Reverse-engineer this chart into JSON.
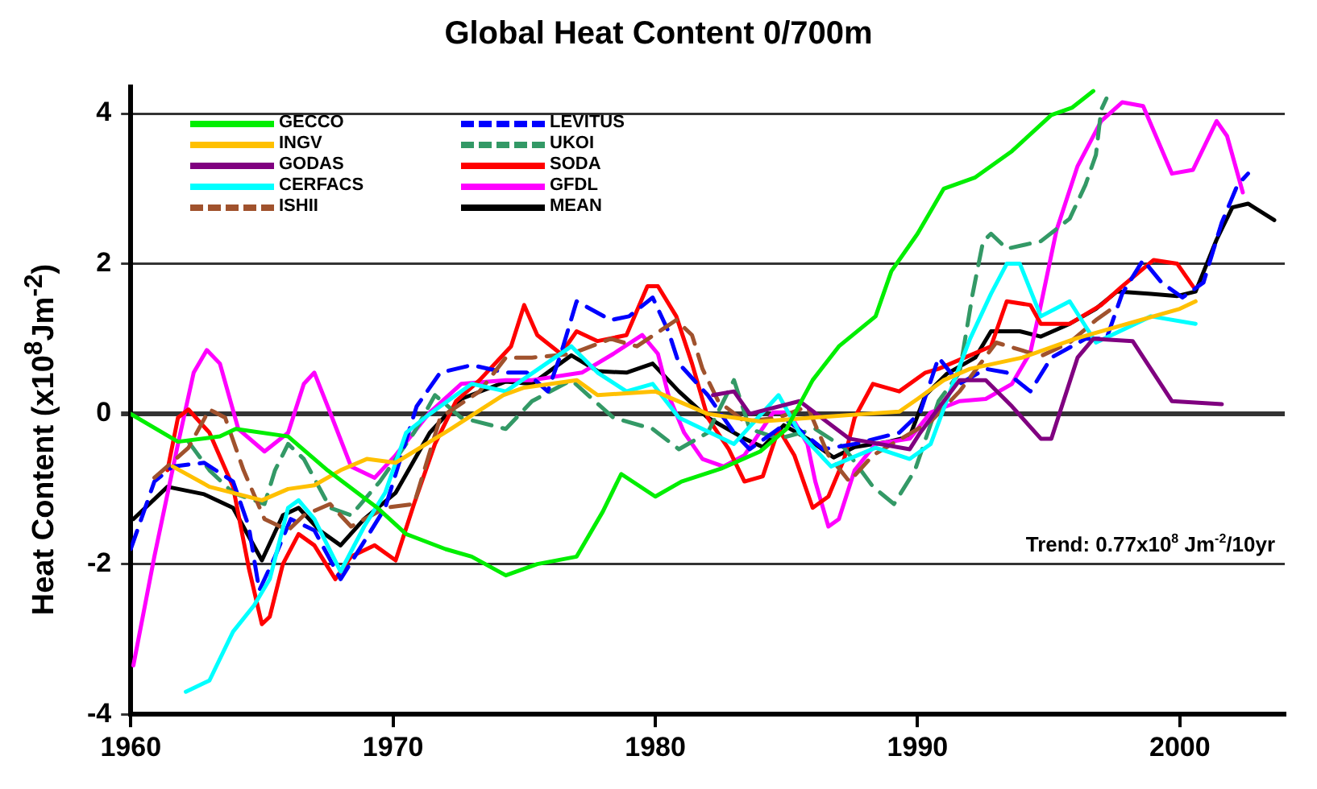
{
  "chart_data": {
    "type": "line",
    "title": "Global Heat Content 0/700m",
    "ylabel": "Heat Content  (x10$^{8}$Jm$^{-2}$)",
    "xlim": [
      1960,
      2004
    ],
    "xticks": [
      1960,
      1970,
      1980,
      1990,
      2000
    ],
    "ylim": [
      -4,
      4.35
    ],
    "yticks": [
      -4,
      -2,
      0,
      2,
      4
    ],
    "grid": "y",
    "legend": "top left",
    "marker": "none",
    "annotations": [
      "Trend: 0.77x10$^{8}$ Jm$^{-2}$/10yr"
    ],
    "series": [
      {
        "name": "GECCO",
        "color": "#00ee00",
        "x": [
          1960,
          1961.8,
          1963.4,
          1964,
          1966,
          1967.5,
          1969.4,
          1970.5,
          1972,
          1973,
          1974.3,
          1975.5,
          1977,
          1978,
          1978.7,
          1980,
          1981,
          1982.5,
          1984,
          1985,
          1986,
          1987,
          1988.4,
          1989,
          1990,
          1991,
          1992.2,
          1993.6,
          1995.1,
          1995.9,
          1996.7
        ],
        "values": [
          0,
          -0.37,
          -0.3,
          -0.2,
          -0.3,
          -0.75,
          -1.25,
          -1.6,
          -1.8,
          -1.9,
          -2.15,
          -2.0,
          -1.9,
          -1.3,
          -0.8,
          -1.1,
          -0.9,
          -0.73,
          -0.5,
          -0.2,
          0.45,
          0.9,
          1.3,
          1.9,
          2.4,
          3.0,
          3.15,
          3.5,
          3.98,
          4.08,
          4.3
        ]
      },
      {
        "name": "INGV",
        "color": "#ffc000",
        "x": [
          1961.6,
          1963,
          1965,
          1966,
          1967,
          1968,
          1969,
          1970.1,
          1972.2,
          1974.2,
          1975,
          1977,
          1977.8,
          1980,
          1981,
          1982,
          1984,
          1986,
          1988,
          1989.3,
          1990,
          1991,
          1992,
          1994,
          1996,
          1998,
          2000,
          2000.6
        ],
        "values": [
          -0.7,
          -0.97,
          -1.15,
          -1.0,
          -0.95,
          -0.75,
          -0.6,
          -0.65,
          -0.2,
          0.25,
          0.35,
          0.45,
          0.25,
          0.3,
          0.15,
          0.0,
          -0.1,
          -0.05,
          0.0,
          0.03,
          0.2,
          0.45,
          0.6,
          0.75,
          1.0,
          1.2,
          1.4,
          1.5
        ]
      },
      {
        "name": "GODAS",
        "color": "#800080",
        "x": [
          1982.2,
          1983,
          1983.6,
          1985.5,
          1987.4,
          1989.7,
          1990.1,
          1991.6,
          1992.6,
          1993.6,
          1994.7,
          1995.1,
          1996.1,
          1996.7,
          1998.2,
          1999.7,
          2001.6
        ],
        "values": [
          0.25,
          0.3,
          0.0,
          0.17,
          -0.33,
          -0.47,
          -0.25,
          0.45,
          0.45,
          0.1,
          -0.33,
          -0.33,
          0.75,
          1.0,
          0.97,
          0.17,
          0.13
        ]
      },
      {
        "name": "CERFACS",
        "color": "#00ffff",
        "x": [
          1962.1,
          1963,
          1963.9,
          1964.7,
          1965.3,
          1966,
          1966.4,
          1967,
          1968,
          1968.9,
          1969.7,
          1970.5,
          1971.4,
          1973,
          1974.3,
          1976.8,
          1977.8,
          1978.9,
          1979.9,
          1980.9,
          1983,
          1984.7,
          1985.5,
          1986.7,
          1988.4,
          1989.7,
          1990.5,
          1991.4,
          1992,
          1992.8,
          1993.4,
          1993.9,
          1994.7,
          1995.8,
          1996.8,
          1998.9,
          2000.6
        ],
        "values": [
          -3.7,
          -3.55,
          -2.9,
          -2.55,
          -2.2,
          -1.25,
          -1.15,
          -1.4,
          -2.1,
          -1.5,
          -1.05,
          -0.25,
          0.0,
          0.4,
          0.3,
          0.9,
          0.55,
          0.3,
          0.4,
          -0.05,
          -0.4,
          0.25,
          -0.25,
          -0.7,
          -0.45,
          -0.6,
          -0.4,
          0.45,
          1.0,
          1.6,
          2.0,
          2.0,
          1.3,
          1.5,
          0.95,
          1.3,
          1.2
        ]
      },
      {
        "name": "ISHII",
        "color": "#a0522d",
        "line_style": "dashed",
        "x": [
          1960.9,
          1962.2,
          1963,
          1963.6,
          1964.3,
          1965.1,
          1966,
          1966.6,
          1967.6,
          1968.4,
          1969.7,
          1970.8,
          1971.8,
          1973.3,
          1974.3,
          1975.3,
          1976.8,
          1978.3,
          1979.3,
          1980.8,
          1981.4,
          1981.8,
          1982.4,
          1983.4,
          1984.7,
          1985.8,
          1986.6,
          1987.4,
          1988.3,
          1990.5,
          1991.6,
          1993,
          1994.7,
          1995.8,
          1996.8,
          1997.6
        ],
        "values": [
          -0.85,
          -0.45,
          0.06,
          -0.05,
          -0.75,
          -1.4,
          -1.55,
          -1.35,
          -1.2,
          -1.5,
          -1.25,
          -1.2,
          -0.05,
          0.3,
          0.75,
          0.75,
          0.8,
          1.0,
          0.9,
          1.25,
          1.05,
          0.6,
          0.17,
          -0.1,
          -0.05,
          0.1,
          -0.55,
          -0.9,
          -0.55,
          -0.1,
          0.3,
          0.95,
          0.77,
          0.95,
          1.25,
          1.45
        ]
      },
      {
        "name": "LEVITUS",
        "color": "#0000ff",
        "line_style": "dashed",
        "x": [
          1960,
          1960.9,
          1961.6,
          1962.8,
          1963.9,
          1964.5,
          1964.9,
          1965.5,
          1966.1,
          1967,
          1968,
          1968.9,
          1969.7,
          1970.9,
          1971.8,
          1973,
          1974.3,
          1975.1,
          1975.9,
          1976.4,
          1977,
          1978.3,
          1979,
          1979.9,
          1980.5,
          1980.9,
          1982,
          1983,
          1983.6,
          1985.1,
          1986.4,
          1987.6,
          1989.3,
          1990.1,
          1990.8,
          1991.6,
          1992.6,
          1993.4,
          1994.3,
          1995.1,
          1996.4,
          1997.2,
          1997.8,
          1998.6,
          1999.3,
          2000.1,
          2000.9,
          2001.6,
          2002.2,
          2002.6
        ],
        "values": [
          -1.8,
          -0.9,
          -0.7,
          -0.65,
          -0.9,
          -1.5,
          -2.35,
          -1.9,
          -1.4,
          -1.55,
          -2.2,
          -1.7,
          -1.25,
          0.1,
          0.55,
          0.65,
          0.55,
          0.55,
          0.3,
          0.8,
          1.5,
          1.25,
          1.3,
          1.55,
          1.1,
          0.67,
          0.25,
          -0.25,
          -0.47,
          -0.1,
          -0.47,
          -0.4,
          -0.25,
          0.02,
          0.75,
          0.4,
          0.6,
          0.55,
          0.3,
          0.75,
          1.0,
          1.0,
          1.6,
          2.05,
          1.75,
          1.55,
          1.75,
          2.55,
          3.05,
          3.2
        ]
      },
      {
        "name": "UKOI",
        "color": "#339966",
        "line_style": "dashed",
        "x": [
          1962.2,
          1963,
          1963.9,
          1965.1,
          1965.5,
          1966,
          1966.6,
          1967.6,
          1968.4,
          1969.5,
          1970.8,
          1971.6,
          1972.6,
          1974.3,
          1975.3,
          1976.8,
          1978.4,
          1979.9,
          1980.9,
          1982,
          1983,
          1983.6,
          1984.7,
          1986.1,
          1987.2,
          1988.3,
          1989.1,
          1989.9,
          1990.8,
          1991.6,
          1992.1,
          1992.5,
          1992.8,
          1993.4,
          1994.7,
          1995.8,
          1996.4,
          1996.8,
          1997,
          1997.2
        ],
        "values": [
          -0.37,
          -0.75,
          -1.05,
          -1.2,
          -0.75,
          -0.4,
          -0.6,
          -1.25,
          -1.35,
          -0.9,
          -0.25,
          0.25,
          -0.05,
          -0.2,
          0.17,
          0.45,
          -0.05,
          -0.2,
          -0.47,
          -0.25,
          0.45,
          -0.2,
          -0.33,
          -0.2,
          -0.45,
          -0.97,
          -1.2,
          -0.75,
          0.17,
          0.55,
          1.6,
          2.3,
          2.4,
          2.2,
          2.3,
          2.6,
          3.05,
          3.45,
          4.05,
          4.2
        ]
      },
      {
        "name": "SODA",
        "color": "#ff0000",
        "x": [
          1961.4,
          1961.8,
          1962.2,
          1963,
          1963.9,
          1964.5,
          1965,
          1965.3,
          1965.8,
          1966.4,
          1967,
          1967.8,
          1968.4,
          1969.3,
          1970.1,
          1970.8,
          1971.6,
          1972.4,
          1973.3,
          1974.5,
          1975,
          1975.5,
          1976.4,
          1977,
          1977.8,
          1978.9,
          1979.7,
          1980.1,
          1980.8,
          1981.4,
          1982,
          1982.8,
          1983.4,
          1984.1,
          1984.7,
          1985.3,
          1986,
          1986.6,
          1987.2,
          1987.6,
          1988.3,
          1989.3,
          1990.3,
          1990.8,
          1991.8,
          1992.8,
          1993.4,
          1994.3,
          1994.7,
          1995.8,
          1997,
          1997.8,
          1999,
          1999.9,
          2000.5
        ],
        "values": [
          -0.75,
          -0.05,
          0.06,
          -0.25,
          -0.97,
          -2.05,
          -2.8,
          -2.7,
          -2.0,
          -1.6,
          -1.75,
          -2.2,
          -1.9,
          -1.75,
          -1.95,
          -1.2,
          -0.4,
          0.17,
          0.45,
          0.9,
          1.45,
          1.05,
          0.8,
          1.1,
          0.97,
          1.05,
          1.7,
          1.7,
          1.3,
          0.67,
          -0.05,
          -0.47,
          -0.9,
          -0.83,
          -0.2,
          -0.55,
          -1.25,
          -1.1,
          -0.6,
          -0.05,
          0.4,
          0.3,
          0.55,
          0.6,
          0.75,
          0.9,
          1.5,
          1.45,
          1.2,
          1.2,
          1.45,
          1.7,
          2.05,
          2.0,
          1.7
        ]
      },
      {
        "name": "GFDL",
        "color": "#ff00ff",
        "x": [
          1960.1,
          1960.9,
          1961.8,
          1962.4,
          1962.9,
          1963.4,
          1964.1,
          1965.1,
          1966,
          1966.6,
          1967,
          1967.6,
          1968.4,
          1969.3,
          1970.1,
          1971.4,
          1972.6,
          1974.3,
          1975.3,
          1977.2,
          1978.4,
          1979.5,
          1980.1,
          1980.5,
          1981.1,
          1981.8,
          1982.6,
          1983.4,
          1984.5,
          1985.1,
          1985.8,
          1986.1,
          1986.6,
          1987,
          1987.6,
          1988.4,
          1989.7,
          1990.5,
          1991.6,
          1992.6,
          1993.6,
          1994.3,
          1994.7,
          1995.3,
          1996.1,
          1997,
          1997.8,
          1998.6,
          1999.7,
          2000.5,
          2001.4,
          2001.8,
          2002.4
        ],
        "values": [
          -3.35,
          -1.9,
          -0.4,
          0.55,
          0.85,
          0.67,
          -0.2,
          -0.5,
          -0.25,
          0.4,
          0.55,
          0.02,
          -0.7,
          -0.85,
          -0.55,
          0.02,
          0.4,
          0.45,
          0.45,
          0.55,
          0.8,
          1.05,
          0.8,
          0.25,
          -0.25,
          -0.6,
          -0.7,
          -0.55,
          0.02,
          0.02,
          -0.4,
          -0.9,
          -1.5,
          -1.4,
          -0.75,
          -0.4,
          -0.33,
          0.02,
          0.17,
          0.2,
          0.4,
          0.82,
          1.45,
          2.45,
          3.3,
          3.9,
          4.15,
          4.1,
          3.2,
          3.25,
          3.9,
          3.7,
          2.95
        ]
      },
      {
        "name": "MEAN",
        "color": "#000000",
        "x": [
          1960.1,
          1961.4,
          1962.8,
          1963.9,
          1965,
          1965.8,
          1966.4,
          1967.2,
          1968,
          1968.9,
          1970.1,
          1971.4,
          1972.6,
          1974.3,
          1975.3,
          1976.8,
          1977.8,
          1978.9,
          1979.9,
          1980.9,
          1982,
          1983.4,
          1984.1,
          1984.9,
          1985.8,
          1986.8,
          1987.6,
          1988.9,
          1989.7,
          1990.3,
          1991.1,
          1992.2,
          1992.8,
          1993.9,
          1994.7,
          1995.8,
          1996.8,
          1997.6,
          1998.9,
          1999.9,
          2000.6,
          2001.4,
          2002,
          2002.6,
          2003.6
        ],
        "values": [
          -1.4,
          -0.97,
          -1.07,
          -1.25,
          -1.95,
          -1.35,
          -1.25,
          -1.55,
          -1.75,
          -1.4,
          -1.05,
          -0.25,
          0.2,
          0.43,
          0.4,
          0.78,
          0.57,
          0.55,
          0.67,
          0.3,
          -0.05,
          -0.33,
          -0.44,
          -0.15,
          -0.33,
          -0.58,
          -0.44,
          -0.37,
          -0.3,
          0.25,
          0.53,
          0.75,
          1.1,
          1.1,
          1.03,
          1.2,
          1.4,
          1.63,
          1.6,
          1.57,
          1.63,
          2.32,
          2.75,
          2.8,
          2.58
        ]
      }
    ]
  }
}
